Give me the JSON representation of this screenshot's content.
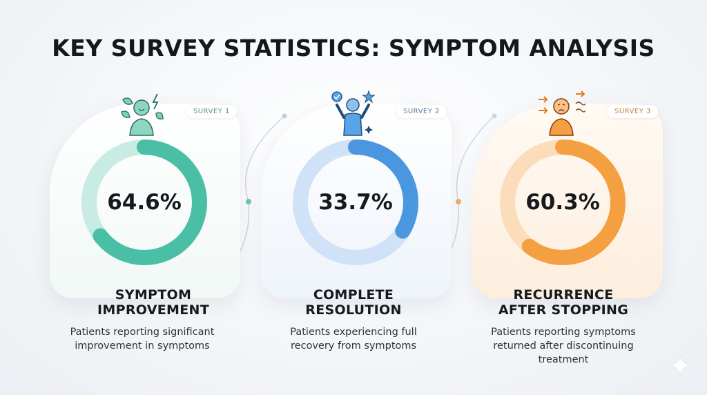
{
  "title": "KEY SURVEY STATISTICS: SYMPTOM ANALYSIS",
  "cards": [
    {
      "badge": "SURVEY 1",
      "value": "64.6%",
      "fraction": 0.646,
      "label_line1": "SYMPTOM",
      "label_line2": "IMPROVEMENT",
      "desc_line1": "Patients reporting significant",
      "desc_line2": "improvement in symptoms",
      "desc_line3": "",
      "accent": "#4bbfa6",
      "track": "#c8ece3",
      "icon": "person-with-leaves-icon"
    },
    {
      "badge": "SURVEY 2",
      "value": "33.7%",
      "fraction": 0.337,
      "label_line1": "COMPLETE",
      "label_line2": "RESOLUTION",
      "desc_line1": "Patients experiencing full",
      "desc_line2": "recovery from symptoms",
      "desc_line3": "",
      "accent": "#4a97e0",
      "track": "#cfe2f7",
      "icon": "person-celebrating-icon"
    },
    {
      "badge": "SURVEY 3",
      "value": "60.3%",
      "fraction": 0.603,
      "label_line1": "RECURRENCE",
      "label_line2": "AFTER STOPPING",
      "desc_line1": "Patients reporting symptoms",
      "desc_line2": "returned after discontinuing",
      "desc_line3": "treatment",
      "accent": "#f5a040",
      "track": "#fbdcbb",
      "icon": "person-distressed-icon"
    }
  ]
}
